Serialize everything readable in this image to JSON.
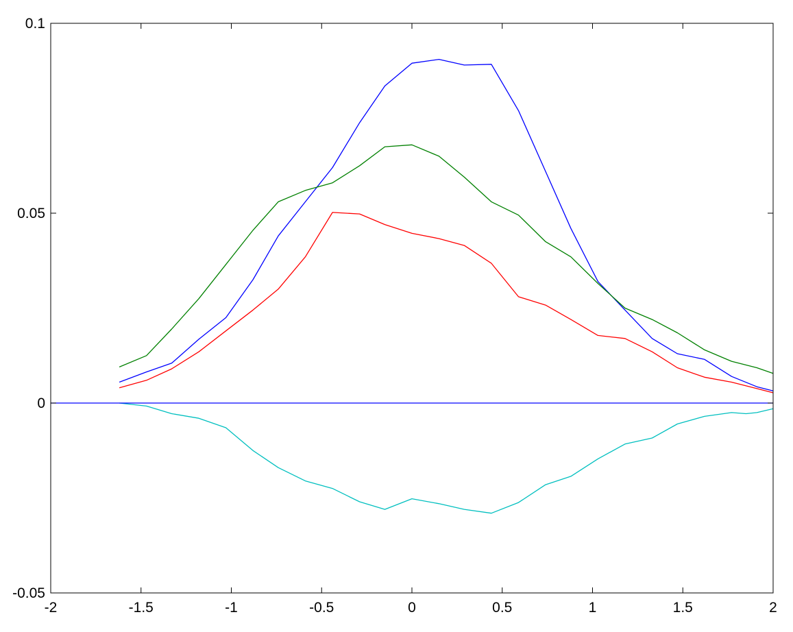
{
  "chart_data": {
    "type": "line",
    "title": "",
    "xlabel": "",
    "ylabel": "",
    "xlim": [
      -2,
      2
    ],
    "ylim": [
      -0.05,
      0.1
    ],
    "grid": false,
    "legend": "none",
    "x_ticks": [
      "-2",
      "-1.5",
      "-1",
      "-0.5",
      "0",
      "0.5",
      "1",
      "1.5",
      "2"
    ],
    "y_ticks": [
      "-0.05",
      "0",
      "0.05",
      "0.1"
    ],
    "series": [
      {
        "color": "#0000ff",
        "x": [
          -1.62,
          -1.47,
          -1.33,
          -1.18,
          -1.03,
          -0.88,
          -0.74,
          -0.59,
          -0.44,
          -0.29,
          -0.15,
          0.0,
          0.15,
          0.29,
          0.44,
          0.59,
          0.74,
          0.88,
          1.03,
          1.18,
          1.33,
          1.47,
          1.62,
          1.77,
          1.91,
          2.0
        ],
        "y": [
          0.0055,
          0.0082,
          0.0105,
          0.0168,
          0.0225,
          0.0325,
          0.044,
          0.053,
          0.062,
          0.0738,
          0.0835,
          0.0895,
          0.0905,
          0.089,
          0.0892,
          0.077,
          0.061,
          0.046,
          0.032,
          0.0245,
          0.017,
          0.013,
          0.0115,
          0.007,
          0.0043,
          0.0032
        ]
      },
      {
        "color": "#008000",
        "x": [
          -1.62,
          -1.47,
          -1.33,
          -1.18,
          -1.03,
          -0.88,
          -0.74,
          -0.59,
          -0.44,
          -0.29,
          -0.15,
          0.0,
          0.15,
          0.29,
          0.44,
          0.59,
          0.74,
          0.88,
          1.03,
          1.18,
          1.33,
          1.47,
          1.62,
          1.77,
          1.91,
          2.0
        ],
        "y": [
          0.0095,
          0.0125,
          0.0195,
          0.0275,
          0.0365,
          0.0455,
          0.053,
          0.056,
          0.058,
          0.0625,
          0.0675,
          0.068,
          0.065,
          0.0595,
          0.053,
          0.0495,
          0.0425,
          0.0385,
          0.0315,
          0.025,
          0.022,
          0.0185,
          0.014,
          0.011,
          0.0093,
          0.0078
        ]
      },
      {
        "color": "#ff0000",
        "x": [
          -1.62,
          -1.47,
          -1.33,
          -1.18,
          -1.03,
          -0.88,
          -0.74,
          -0.59,
          -0.44,
          -0.29,
          -0.15,
          0.0,
          0.15,
          0.29,
          0.44,
          0.59,
          0.74,
          0.88,
          1.03,
          1.18,
          1.33,
          1.47,
          1.62,
          1.77,
          1.91,
          2.0
        ],
        "y": [
          0.004,
          0.006,
          0.009,
          0.0135,
          0.019,
          0.0245,
          0.03,
          0.0385,
          0.0502,
          0.0498,
          0.047,
          0.0447,
          0.0433,
          0.0415,
          0.0368,
          0.028,
          0.0258,
          0.022,
          0.0178,
          0.017,
          0.0135,
          0.0093,
          0.0068,
          0.0055,
          0.0038,
          0.0027
        ]
      },
      {
        "color": "#00bfbf",
        "x": [
          -1.62,
          -1.47,
          -1.33,
          -1.18,
          -1.03,
          -0.88,
          -0.74,
          -0.59,
          -0.44,
          -0.29,
          -0.15,
          0.0,
          0.15,
          0.29,
          0.44,
          0.59,
          0.74,
          0.88,
          1.03,
          1.18,
          1.33,
          1.47,
          1.62,
          1.77,
          1.85,
          1.91,
          2.0
        ],
        "y": [
          0.0,
          -0.0008,
          -0.0028,
          -0.004,
          -0.0065,
          -0.0125,
          -0.017,
          -0.0205,
          -0.0225,
          -0.026,
          -0.028,
          -0.0252,
          -0.0265,
          -0.028,
          -0.029,
          -0.0262,
          -0.0215,
          -0.0193,
          -0.0147,
          -0.0108,
          -0.0092,
          -0.0055,
          -0.0035,
          -0.0025,
          -0.0028,
          -0.0025,
          -0.0015
        ]
      },
      {
        "color": "#0000ff",
        "x": [
          -2,
          2
        ],
        "y": [
          0,
          0
        ]
      }
    ]
  }
}
